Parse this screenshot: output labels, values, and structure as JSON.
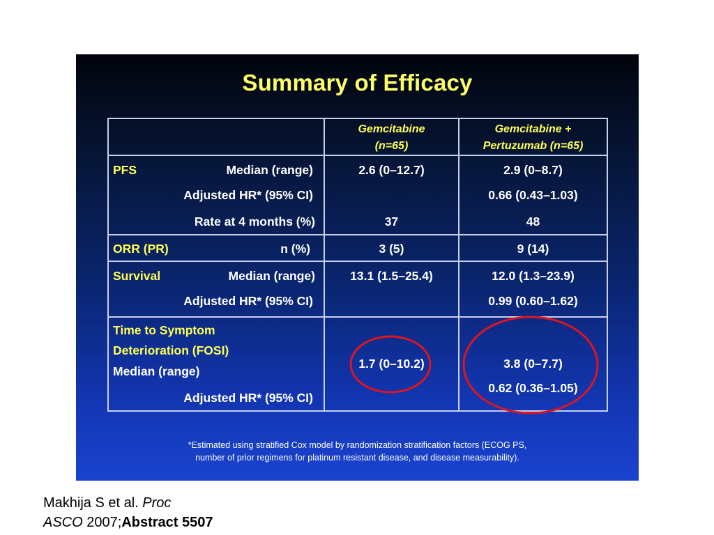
{
  "slide": {
    "title": "Summary of Efficacy",
    "header": {
      "col1_line1": "Gemcitabine",
      "col1_line2": "(n=65)",
      "col2_line1": "Gemcitabine +",
      "col2_line2": "Pertuzumab (n=65)"
    },
    "sections": {
      "pfs": {
        "label": "PFS",
        "rows": [
          {
            "label": "Median (range)",
            "v1": "2.6 (0–12.7)",
            "v2": "2.9 (0–8.7)"
          },
          {
            "label": "Adjusted HR* (95% CI)",
            "v1": "",
            "v2": "0.66 (0.43–1.03)"
          },
          {
            "label": "Rate at 4 months (%)",
            "v1": "37",
            "v2": "48"
          }
        ]
      },
      "orr": {
        "label": "ORR (PR)",
        "rows": [
          {
            "label": "n (%)",
            "v1": "3 (5)",
            "v2": "9 (14)"
          }
        ]
      },
      "survival": {
        "label": "Survival",
        "rows": [
          {
            "label": "Median (range)",
            "v1": "13.1 (1.5–25.4)",
            "v2": "12.0 (1.3–23.9)"
          },
          {
            "label": "Adjusted HR* (95% CI)",
            "v1": "",
            "v2": "0.99 (0.60–1.62)"
          }
        ]
      },
      "tsd": {
        "label_line1": "Time to Symptom",
        "label_line2": "Deterioration (FOSI)",
        "median_label": "Median (range)",
        "hr_label": "Adjusted HR* (95% CI)",
        "v1_median": "1.7 (0–10.2)",
        "v2_median": "3.8 (0–7.7)",
        "v2_hr": "0.62 (0.36–1.05)"
      }
    },
    "footnote_line1": "*Estimated using stratified Cox model by randomization stratification factors (ECOG PS,",
    "footnote_line2": "number of prior regimens for platinum resistant disease, and disease measurability).",
    "colors": {
      "title_yellow": "#ffff66",
      "highlight_circle": "#e0141e",
      "background_top": "#01040c",
      "background_bottom": "#1a43cf"
    }
  },
  "citation": {
    "author": "Makhija S et al.",
    "journal_part1": "Proc",
    "journal_part2": "ASCO",
    "year": "2007;",
    "abstract": "Abstract 5507"
  }
}
